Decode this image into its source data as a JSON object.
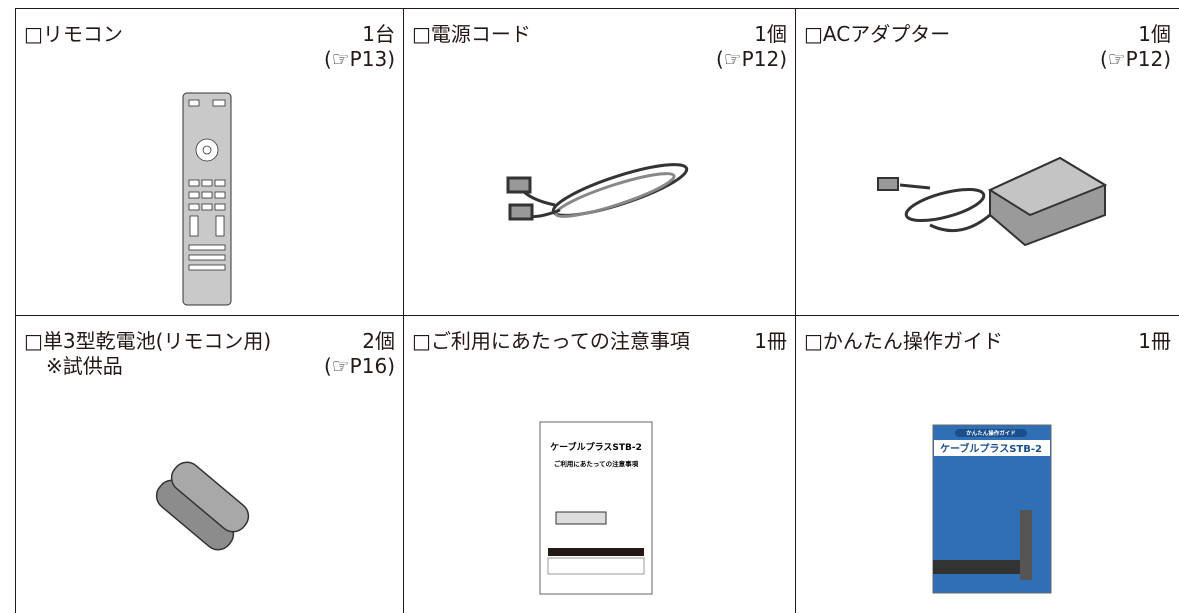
{
  "items": [
    {
      "name": "□リモコン",
      "quantity": "1台",
      "reference": "(☞P13)"
    },
    {
      "name": "□電源コード",
      "quantity": "1個",
      "reference": "(☞P12)"
    },
    {
      "name": "□ACアダプター",
      "quantity": "1個",
      "reference": "(☞P12)"
    },
    {
      "name": "□単3型乾電池(リモコン用)",
      "quantity": "2個",
      "note": "※試供品",
      "reference": "(☞P16)"
    },
    {
      "name": "□ご利用にあたっての注意事項",
      "quantity": "1冊",
      "cover": {
        "title": "ケーブルプラスSTB-2",
        "subtitle": "ご利用にあたっての注意事項"
      }
    },
    {
      "name": "□かんたん操作ガイド",
      "quantity": "1冊",
      "cover": {
        "label": "かんたん操作ガイド",
        "title": "ケーブルプラスSTB-2"
      }
    }
  ]
}
